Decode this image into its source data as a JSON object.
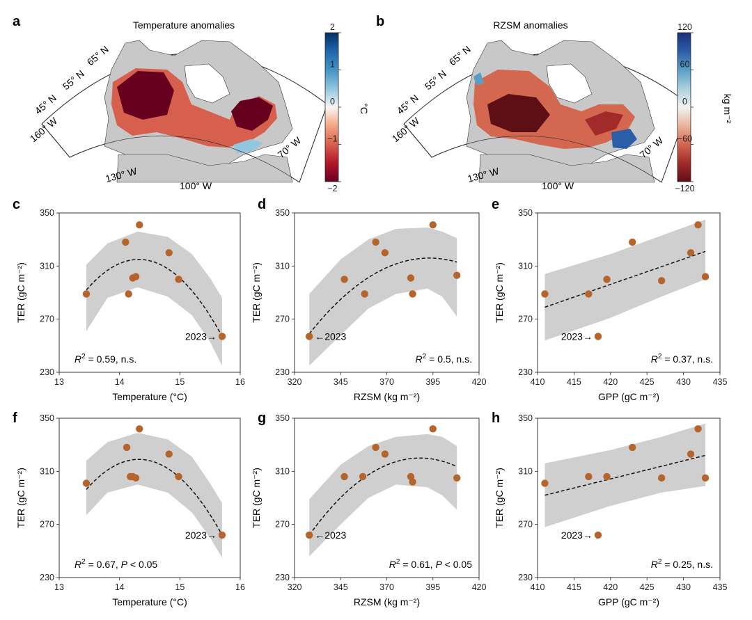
{
  "maps": [
    {
      "panel": "a",
      "title": "Temperature anomalies",
      "colorbar_label": "°C",
      "colorbar_ticks": [
        "2",
        "1",
        "0",
        "−1",
        "−2"
      ],
      "colorbar_range": [
        -2,
        2
      ],
      "colors": [
        "#67001f",
        "#b2182b",
        "#d6604d",
        "#f4a582",
        "#f7f7f7",
        "#92c5de",
        "#4393c3",
        "#2166ac",
        "#053061"
      ],
      "lat_labels": [
        "65° N",
        "55° N",
        "45° N"
      ],
      "lon_labels": [
        "160° W",
        "130° W",
        "100° W",
        "70° W"
      ]
    },
    {
      "panel": "b",
      "title": "RZSM anomalies",
      "colorbar_label": "kg m⁻²",
      "colorbar_ticks": [
        "120",
        "60",
        "0",
        "−60",
        "−120"
      ],
      "colorbar_range": [
        -120,
        120
      ],
      "colors": [
        "#5e0f16",
        "#a12a2a",
        "#d4674f",
        "#eab39c",
        "#f2f2f2",
        "#a9d0dd",
        "#5a9ec7",
        "#2a5ea8",
        "#1c2f78"
      ],
      "lat_labels": [
        "65° N",
        "55° N",
        "45° N"
      ],
      "lon_labels": [
        "160° W",
        "130° W",
        "100° W",
        "70° W"
      ]
    }
  ],
  "chart_data": [
    {
      "panel": "c",
      "type": "scatter",
      "xlabel": "Temperature (°C)",
      "ylabel": "TER (gC m⁻²)",
      "xlim": [
        13,
        16
      ],
      "ylim": [
        230,
        350
      ],
      "xticks": [
        "13",
        "14",
        "15",
        "16"
      ],
      "yticks": [
        "230",
        "270",
        "310",
        "350"
      ],
      "points": [
        [
          13.45,
          289
        ],
        [
          14.1,
          328
        ],
        [
          14.15,
          289
        ],
        [
          14.22,
          301
        ],
        [
          14.27,
          302
        ],
        [
          14.33,
          341
        ],
        [
          14.82,
          320
        ],
        [
          14.98,
          300
        ],
        [
          15.7,
          257
        ]
      ],
      "fit": {
        "kind": "quadratic",
        "vertex": [
          14.32,
          315
        ],
        "end": [
          15.7,
          257
        ]
      },
      "band": {
        "upper": [
          [
            13.45,
            311
          ],
          [
            13.8,
            327
          ],
          [
            14.3,
            336
          ],
          [
            14.8,
            332
          ],
          [
            15.2,
            319
          ],
          [
            15.5,
            301
          ],
          [
            15.7,
            286
          ]
        ],
        "lower": [
          [
            13.45,
            261
          ],
          [
            13.8,
            286
          ],
          [
            14.3,
            294
          ],
          [
            14.8,
            287
          ],
          [
            15.2,
            273
          ],
          [
            15.5,
            253
          ],
          [
            15.7,
            235
          ]
        ]
      },
      "highlight": {
        "label": "2023→",
        "x": 15.7,
        "y": 257,
        "side": "left"
      },
      "r2_text": "= 0.59, n.s.",
      "r2_pos": "bottom-left"
    },
    {
      "panel": "d",
      "type": "scatter",
      "xlabel": "RZSM (kg m⁻²)",
      "ylabel": "TER (gC m⁻²)",
      "xlim": [
        320,
        420
      ],
      "ylim": [
        230,
        350
      ],
      "xticks": [
        "320",
        "345",
        "370",
        "395",
        "420"
      ],
      "yticks": [
        "230",
        "270",
        "310",
        "350"
      ],
      "points": [
        [
          328,
          257
        ],
        [
          347,
          300
        ],
        [
          358,
          289
        ],
        [
          364,
          328
        ],
        [
          369,
          320
        ],
        [
          383,
          301
        ],
        [
          384,
          289
        ],
        [
          395,
          341
        ],
        [
          408,
          303
        ]
      ],
      "fit": {
        "kind": "quadratic",
        "vertex": [
          393,
          316
        ],
        "start": [
          328,
          259
        ]
      },
      "band": {
        "upper": [
          [
            328,
            289
          ],
          [
            345,
            315
          ],
          [
            360,
            330
          ],
          [
            375,
            338
          ],
          [
            392,
            339
          ],
          [
            400,
            336
          ],
          [
            408,
            331
          ]
        ],
        "lower": [
          [
            328,
            235
          ],
          [
            345,
            258
          ],
          [
            360,
            278
          ],
          [
            375,
            289
          ],
          [
            392,
            293
          ],
          [
            400,
            287
          ],
          [
            408,
            272
          ]
        ]
      },
      "highlight": {
        "label": "←2023",
        "x": 328,
        "y": 257,
        "side": "right"
      },
      "r2_text": "= 0.5, n.s.",
      "r2_pos": "bottom-right"
    },
    {
      "panel": "e",
      "type": "scatter",
      "xlabel": "GPP (gC m⁻²)",
      "ylabel": "TER (gC m⁻²)",
      "xlim": [
        410,
        435
      ],
      "ylim": [
        230,
        350
      ],
      "xticks": [
        "410",
        "415",
        "420",
        "425",
        "430",
        "435"
      ],
      "yticks": [
        "230",
        "270",
        "310",
        "350"
      ],
      "points": [
        [
          411,
          289
        ],
        [
          417,
          289
        ],
        [
          418.3,
          257
        ],
        [
          419.5,
          300
        ],
        [
          423,
          328
        ],
        [
          427,
          299
        ],
        [
          431,
          320
        ],
        [
          432,
          341
        ],
        [
          433,
          302
        ]
      ],
      "fit": {
        "kind": "linear",
        "start": [
          411,
          279
        ],
        "end": [
          433,
          321
        ]
      },
      "band": {
        "upper": [
          [
            411,
            304
          ],
          [
            420,
            319
          ],
          [
            427,
            333
          ],
          [
            433,
            345
          ]
        ],
        "lower": [
          [
            411,
            254
          ],
          [
            420,
            271
          ],
          [
            427,
            287
          ],
          [
            433,
            300
          ]
        ]
      },
      "highlight": {
        "label": "2023→",
        "x": 418.3,
        "y": 257,
        "side": "left"
      },
      "r2_text": "= 0.37, n.s.",
      "r2_pos": "bottom-right"
    },
    {
      "panel": "f",
      "type": "scatter",
      "xlabel": "Temperature (°C)",
      "ylabel": "TER (gC m⁻²)",
      "xlim": [
        13,
        16
      ],
      "ylim": [
        230,
        350
      ],
      "xticks": [
        "13",
        "14",
        "15",
        "16"
      ],
      "yticks": [
        "230",
        "270",
        "310",
        "350"
      ],
      "points": [
        [
          13.45,
          301
        ],
        [
          14.12,
          328
        ],
        [
          14.18,
          306
        ],
        [
          14.22,
          306
        ],
        [
          14.27,
          305
        ],
        [
          14.33,
          342
        ],
        [
          14.82,
          323
        ],
        [
          14.98,
          306
        ],
        [
          15.7,
          262
        ]
      ],
      "fit": {
        "kind": "quadratic",
        "vertex": [
          14.32,
          319
        ],
        "end": [
          15.7,
          262
        ]
      },
      "band": {
        "upper": [
          [
            13.45,
            318
          ],
          [
            13.8,
            332
          ],
          [
            14.3,
            339
          ],
          [
            14.8,
            334
          ],
          [
            15.2,
            321
          ],
          [
            15.5,
            301
          ],
          [
            15.7,
            286
          ]
        ],
        "lower": [
          [
            13.45,
            277
          ],
          [
            13.8,
            294
          ],
          [
            14.3,
            300
          ],
          [
            14.8,
            294
          ],
          [
            15.2,
            279
          ],
          [
            15.5,
            260
          ],
          [
            15.7,
            245
          ]
        ]
      },
      "highlight": {
        "label": "2023→",
        "x": 15.7,
        "y": 262,
        "side": "left"
      },
      "r2_text": "= 0.67,",
      "p_text": "< 0.05",
      "r2_pos": "bottom-left"
    },
    {
      "panel": "g",
      "type": "scatter",
      "xlabel": "RZSM (kg m⁻²)",
      "ylabel": "TER (gC m⁻²)",
      "xlim": [
        320,
        420
      ],
      "ylim": [
        230,
        350
      ],
      "xticks": [
        "320",
        "345",
        "370",
        "395",
        "420"
      ],
      "yticks": [
        "230",
        "270",
        "310",
        "350"
      ],
      "points": [
        [
          328,
          262
        ],
        [
          347,
          306
        ],
        [
          357,
          306
        ],
        [
          364,
          328
        ],
        [
          369,
          323
        ],
        [
          383,
          306
        ],
        [
          384,
          302
        ],
        [
          395,
          342
        ],
        [
          408,
          305
        ]
      ],
      "fit": {
        "kind": "quadratic",
        "vertex": [
          388,
          320
        ],
        "start": [
          328,
          262
        ]
      },
      "band": {
        "upper": [
          [
            328,
            289
          ],
          [
            345,
            315
          ],
          [
            360,
            329
          ],
          [
            375,
            336
          ],
          [
            392,
            338
          ],
          [
            400,
            336
          ],
          [
            408,
            329
          ]
        ],
        "lower": [
          [
            328,
            246
          ],
          [
            345,
            270
          ],
          [
            360,
            290
          ],
          [
            375,
            300
          ],
          [
            392,
            298
          ],
          [
            400,
            292
          ],
          [
            408,
            281
          ]
        ]
      },
      "highlight": {
        "label": "←2023",
        "x": 328,
        "y": 262,
        "side": "right"
      },
      "r2_text": "= 0.61,",
      "p_text": "< 0.05",
      "r2_pos": "bottom-right"
    },
    {
      "panel": "h",
      "type": "scatter",
      "xlabel": "GPP (gC m⁻²)",
      "ylabel": "TER (gC m⁻²)",
      "xlim": [
        410,
        435
      ],
      "ylim": [
        230,
        350
      ],
      "xticks": [
        "410",
        "415",
        "420",
        "425",
        "430",
        "435"
      ],
      "yticks": [
        "230",
        "270",
        "310",
        "350"
      ],
      "points": [
        [
          411,
          301
        ],
        [
          417,
          306
        ],
        [
          418.3,
          262
        ],
        [
          419.5,
          306
        ],
        [
          423,
          328
        ],
        [
          427,
          305
        ],
        [
          431,
          323
        ],
        [
          432,
          342
        ],
        [
          433,
          305
        ]
      ],
      "fit": {
        "kind": "linear",
        "start": [
          411,
          292
        ],
        "end": [
          433,
          322
        ]
      },
      "band": {
        "upper": [
          [
            411,
            316
          ],
          [
            420,
            326
          ],
          [
            427,
            336
          ],
          [
            433,
            346
          ]
        ],
        "lower": [
          [
            411,
            268
          ],
          [
            420,
            284
          ],
          [
            427,
            294
          ],
          [
            433,
            299
          ]
        ]
      },
      "highlight": {
        "label": "2023→",
        "x": 418.3,
        "y": 262,
        "side": "left"
      },
      "r2_text": "= 0.25, n.s.",
      "r2_pos": "bottom-right"
    }
  ]
}
